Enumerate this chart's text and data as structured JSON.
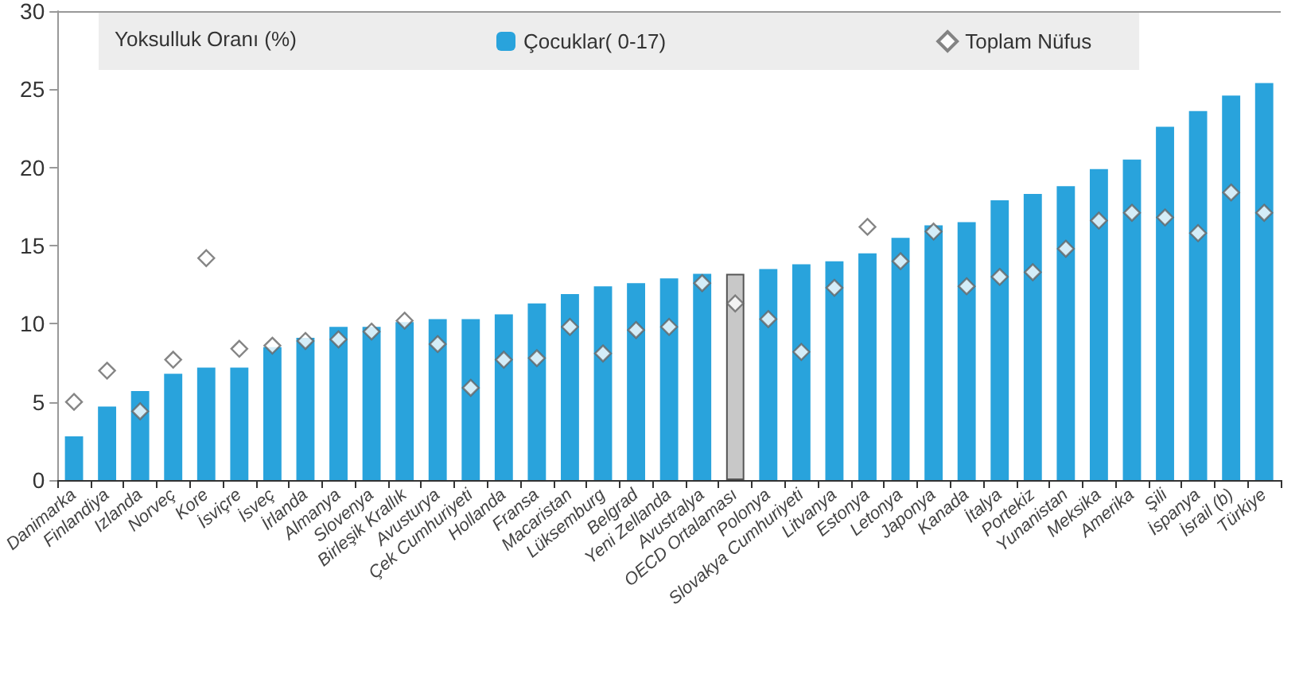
{
  "chart_data": {
    "type": "bar",
    "legend_title": "Yoksulluk Oranı (%)",
    "categories": [
      "Danimarka",
      "Finlandiya",
      "Izlanda",
      "Norveç",
      "Kore",
      "İsviçre",
      "İsveç",
      "İrlanda",
      "Almanya",
      "Slovenya",
      "Birleşik Krallık",
      "Avusturya",
      "Çek Cumhuriyeti",
      "Hollanda",
      "Fransa",
      "Macaristan",
      "Lüksemburg",
      "Belgrad",
      "Yeni Zellanda",
      "Avustralya",
      "OECD Ortalaması",
      "Polonya",
      "Slovakya Cumhuriyeti",
      "Litvanya",
      "Estonya",
      "Letonya",
      "Japonya",
      "Kanada",
      "İtalya",
      "Portekiz",
      "Yunanistan",
      "Meksika",
      "Amerika",
      "Şili",
      "İspanya",
      "İsrail (b)",
      "Türkiye"
    ],
    "series": [
      {
        "name": "Çocuklar( 0-17)",
        "color": "#29a3dc",
        "colors": [
          "#29a3dc",
          "#29a3dc",
          "#29a3dc",
          "#29a3dc",
          "#29a3dc",
          "#29a3dc",
          "#29a3dc",
          "#29a3dc",
          "#29a3dc",
          "#29a3dc",
          "#29a3dc",
          "#29a3dc",
          "#29a3dc",
          "#29a3dc",
          "#29a3dc",
          "#29a3dc",
          "#29a3dc",
          "#29a3dc",
          "#29a3dc",
          "#29a3dc",
          "#c8c8c8",
          "#29a3dc",
          "#29a3dc",
          "#29a3dc",
          "#29a3dc",
          "#29a3dc",
          "#29a3dc",
          "#29a3dc",
          "#29a3dc",
          "#29a3dc",
          "#29a3dc",
          "#29a3dc",
          "#29a3dc",
          "#29a3dc",
          "#29a3dc",
          "#29a3dc",
          "#29a3dc"
        ],
        "values": [
          2.8,
          4.7,
          5.7,
          6.8,
          7.2,
          7.2,
          8.5,
          9.1,
          9.8,
          9.8,
          10.1,
          10.3,
          10.3,
          10.6,
          11.3,
          11.9,
          12.4,
          12.6,
          12.9,
          13.2,
          13.2,
          13.5,
          13.8,
          14.0,
          14.5,
          15.5,
          16.3,
          16.5,
          17.9,
          18.3,
          18.8,
          19.9,
          20.5,
          22.6,
          23.6,
          24.6,
          25.4
        ]
      },
      {
        "name": "Toplam Nüfus",
        "type": "scatter",
        "marker": "diamond",
        "color": "#ffffff",
        "values": [
          5.0,
          7.0,
          4.4,
          7.7,
          14.2,
          8.4,
          8.6,
          8.9,
          9.0,
          9.5,
          10.2,
          8.7,
          5.9,
          7.7,
          7.8,
          9.8,
          8.1,
          9.6,
          9.8,
          12.6,
          11.3,
          10.3,
          8.2,
          12.3,
          16.2,
          14.0,
          15.9,
          12.4,
          13.0,
          13.3,
          14.8,
          16.6,
          17.1,
          16.8,
          15.8,
          18.4,
          17.1
        ]
      }
    ],
    "ylim": [
      0,
      30
    ],
    "yticks": [
      0,
      5,
      10,
      15,
      20,
      25,
      30
    ],
    "grid": false,
    "legend": "top"
  }
}
